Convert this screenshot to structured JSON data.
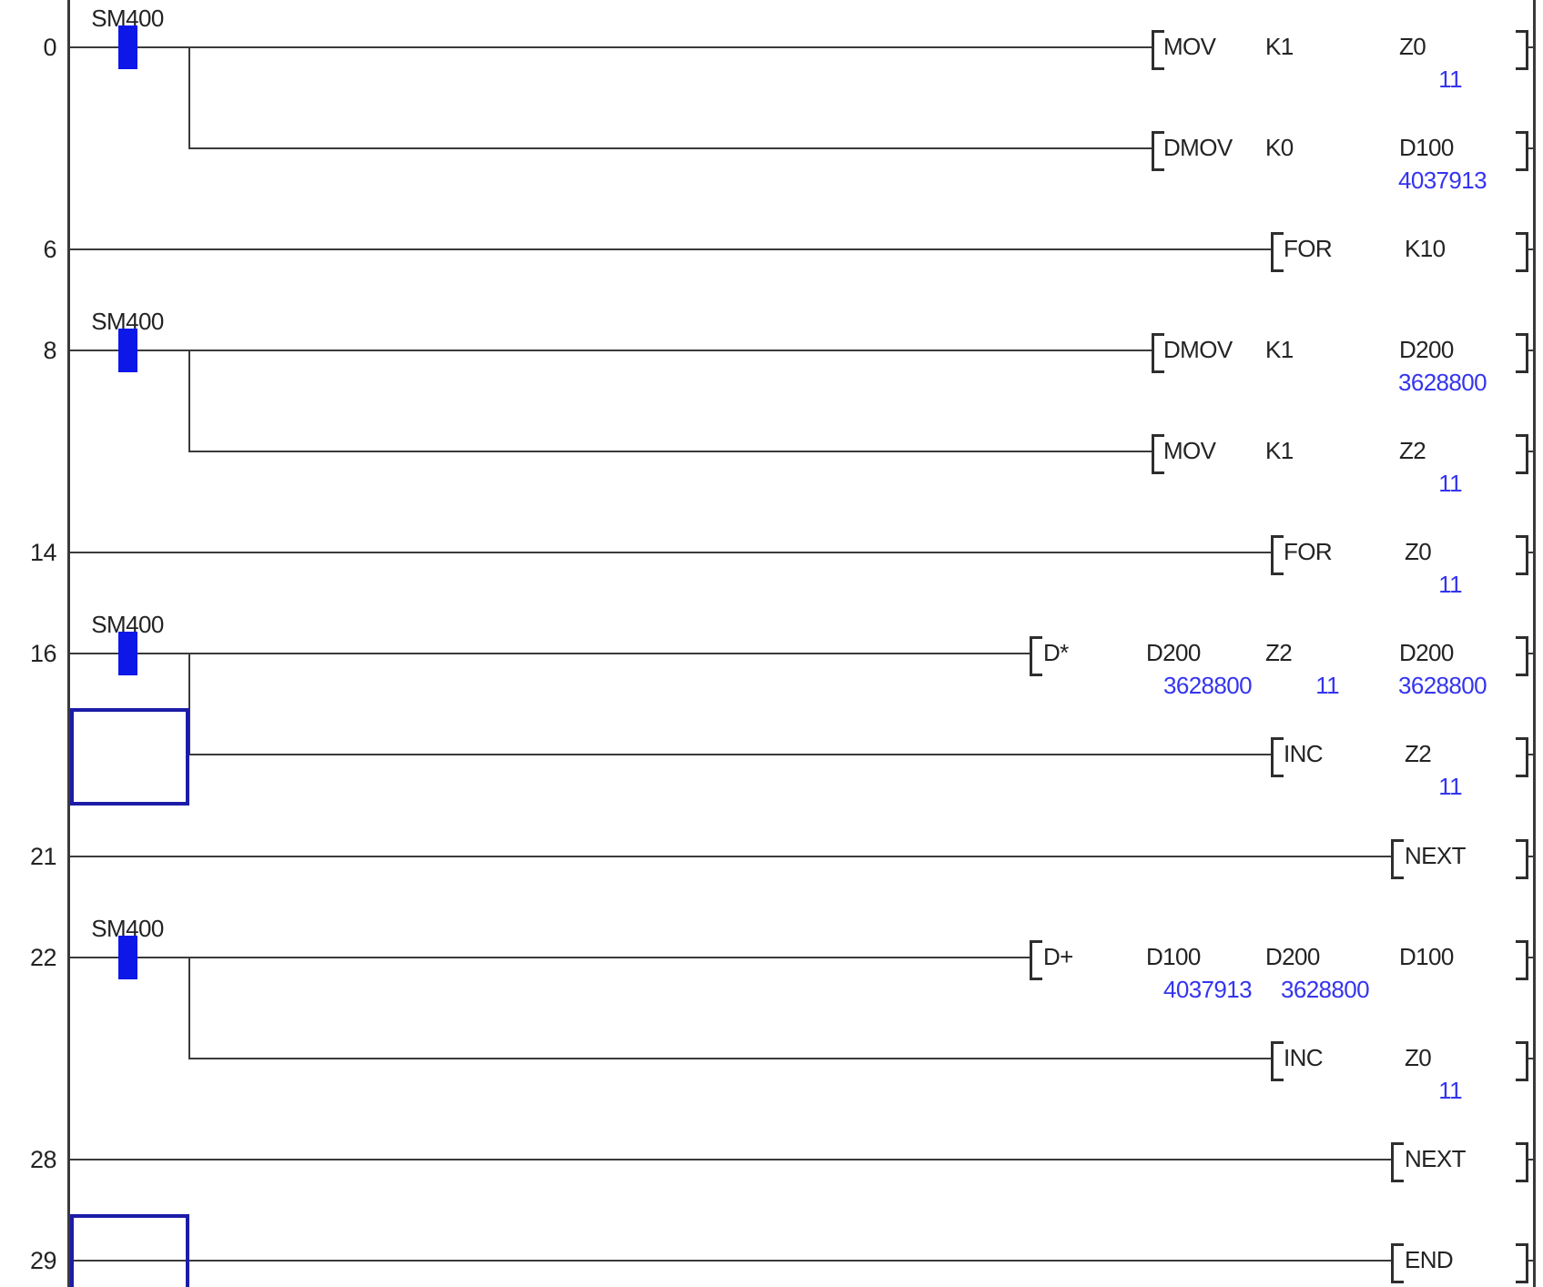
{
  "app": {
    "name": "plc-ladder-editor",
    "mode": "monitor",
    "language": "ladder-diagram"
  },
  "colors": {
    "wire": "#3a3a3a",
    "text": "#232323",
    "contact_on_fill": "#0d17e8",
    "monitor_value": "#3434ee",
    "cursor_border": "#1c1ca8",
    "background": "#ffffff"
  },
  "rungs": [
    {
      "step": "0",
      "contact": {
        "device": "SM400",
        "on": true
      },
      "branch_down": true,
      "instr": {
        "name": "MOV",
        "args": [
          {
            "device": "K1"
          },
          {
            "device": "Z0",
            "value": "11"
          }
        ]
      }
    },
    {
      "step": "",
      "sub_branch": true,
      "instr": {
        "name": "DMOV",
        "args": [
          {
            "device": "K0"
          },
          {
            "device": "D100",
            "value": "4037913"
          }
        ]
      }
    },
    {
      "step": "6",
      "instr": {
        "name": "FOR",
        "args": [
          {
            "device": "K10"
          }
        ]
      }
    },
    {
      "step": "8",
      "contact": {
        "device": "SM400",
        "on": true
      },
      "branch_down": true,
      "instr": {
        "name": "DMOV",
        "args": [
          {
            "device": "K1"
          },
          {
            "device": "D200",
            "value": "3628800"
          }
        ]
      }
    },
    {
      "step": "",
      "sub_branch": true,
      "instr": {
        "name": "MOV",
        "args": [
          {
            "device": "K1"
          },
          {
            "device": "Z2",
            "value": "11"
          }
        ]
      }
    },
    {
      "step": "14",
      "instr": {
        "name": "FOR",
        "args": [
          {
            "device": "Z0",
            "value": "11"
          }
        ]
      }
    },
    {
      "step": "16",
      "contact": {
        "device": "SM400",
        "on": true
      },
      "branch_down": true,
      "instr": {
        "name": "D*",
        "args": [
          {
            "device": "D200",
            "value": "3628800"
          },
          {
            "device": "Z2",
            "value": "11"
          },
          {
            "device": "D200",
            "value": "3628800"
          }
        ]
      }
    },
    {
      "step": "",
      "sub_branch": true,
      "instr": {
        "name": "INC",
        "args": [
          {
            "device": "Z2",
            "value": "11"
          }
        ]
      }
    },
    {
      "step": "21",
      "instr": {
        "name": "NEXT",
        "args": []
      }
    },
    {
      "step": "22",
      "contact": {
        "device": "SM400",
        "on": true
      },
      "branch_down": true,
      "instr": {
        "name": "D+",
        "args": [
          {
            "device": "D100",
            "value": "4037913"
          },
          {
            "device": "D200",
            "value": "3628800"
          },
          {
            "device": "D100"
          }
        ]
      }
    },
    {
      "step": "",
      "sub_branch": true,
      "instr": {
        "name": "INC",
        "args": [
          {
            "device": "Z0",
            "value": "11"
          }
        ]
      }
    },
    {
      "step": "28",
      "instr": {
        "name": "NEXT",
        "args": []
      }
    },
    {
      "step": "29",
      "instr": {
        "name": "END",
        "args": []
      }
    }
  ],
  "selection": {
    "cursor_cells": [
      {
        "rung_index": 7,
        "column": 0
      },
      {
        "rung_index": 12,
        "column": 0
      }
    ]
  }
}
